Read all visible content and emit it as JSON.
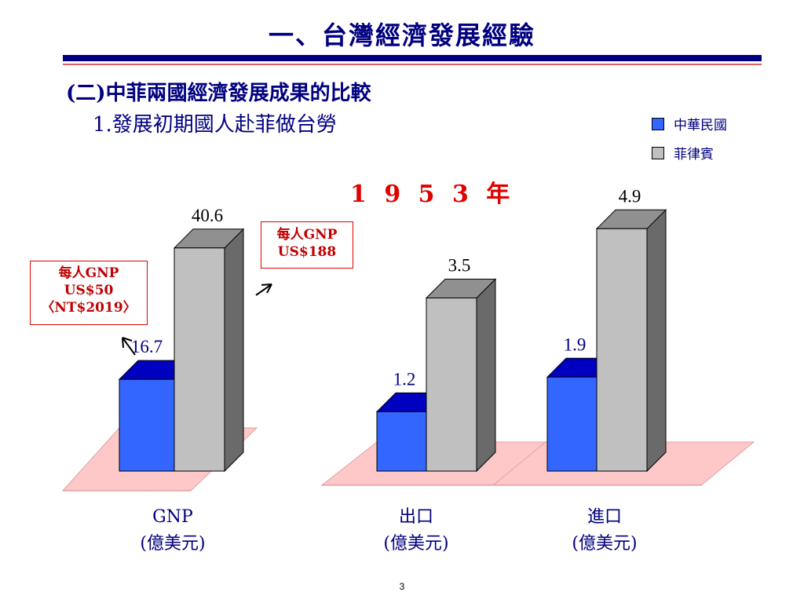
{
  "header": {
    "title": "一、台灣經濟發展經驗",
    "subtitle1": "(二)中菲兩國經濟發展成果的比較",
    "subtitle2": "1.發展初期國人赴菲做台勞"
  },
  "year_label": "1 9 5 3 年",
  "legend": [
    {
      "label": "中華民國",
      "color": "#3366ff"
    },
    {
      "label": "菲律賓",
      "color": "#c0c0c0"
    }
  ],
  "callouts": [
    {
      "lines": [
        "每人GNP",
        "US$50",
        "〈NT$2019〉"
      ]
    },
    {
      "lines": [
        "每人GNP",
        "US$188"
      ]
    }
  ],
  "categories": [
    {
      "line1": "GNP",
      "line2": "(億美元)"
    },
    {
      "line1": "出口",
      "line2": "(億美元)"
    },
    {
      "line1": "進口",
      "line2": "(億美元)"
    }
  ],
  "chart_data": {
    "type": "bar",
    "categories": [
      "GNP (億美元)",
      "出口 (億美元)",
      "進口 (億美元)"
    ],
    "series": [
      {
        "name": "中華民國",
        "values": [
          16.7,
          1.2,
          1.9
        ],
        "labels": [
          "16.7",
          "1.2",
          "1.9"
        ],
        "color": "#3366ff"
      },
      {
        "name": "菲律賓",
        "values": [
          40.6,
          3.5,
          4.9
        ],
        "labels": [
          "40.6",
          "3.5",
          "4.9"
        ],
        "color": "#c0c0c0"
      }
    ],
    "groups_share_scale": false,
    "legend_position": "top-right",
    "grid": false
  },
  "footer": {
    "page_number": "3"
  }
}
